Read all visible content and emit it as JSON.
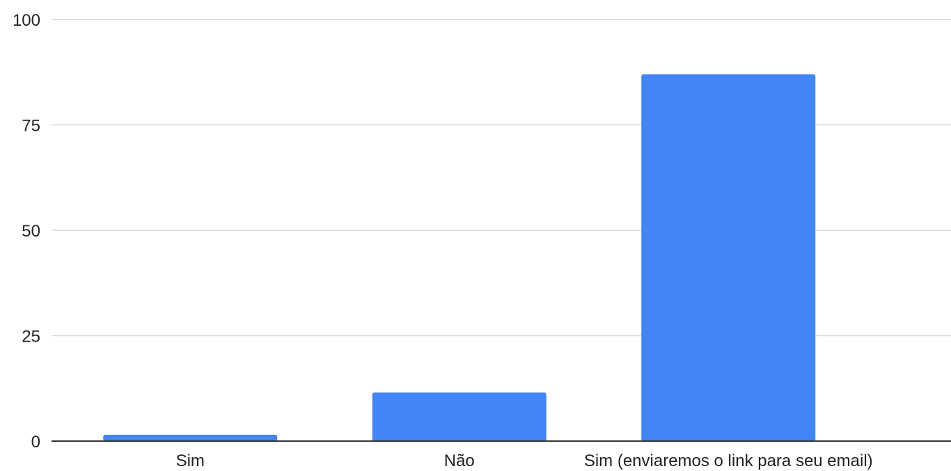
{
  "chart_data": {
    "type": "bar",
    "categories": [
      "Sim",
      "Não",
      "Sim (enviaremos o link para seu email)"
    ],
    "values": [
      1.5,
      11.5,
      87
    ],
    "title": "",
    "xlabel": "",
    "ylabel": "",
    "ylim": [
      0,
      100
    ],
    "yticks": [
      "0",
      "25",
      "50",
      "75",
      "100"
    ],
    "grid": true,
    "legend": "none",
    "colors": {
      "bar": "#4285F4",
      "grid": "#d9d9d9",
      "axis": "#333333",
      "text": "#222222"
    }
  }
}
